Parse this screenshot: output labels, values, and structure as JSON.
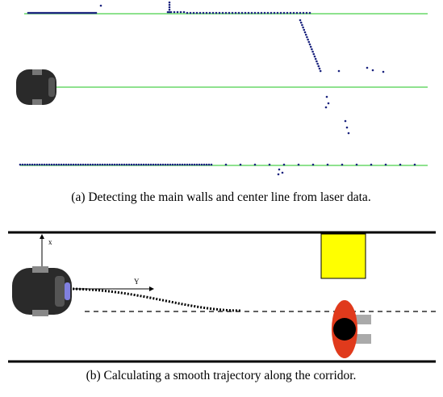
{
  "figures": [
    {
      "caption": "(a) Detecting the main walls and center line from laser data."
    },
    {
      "caption": "(b) Calculating a smooth trajectory along the corridor.",
      "axis_labels": {
        "x": "x",
        "y": "Y"
      }
    }
  ]
}
